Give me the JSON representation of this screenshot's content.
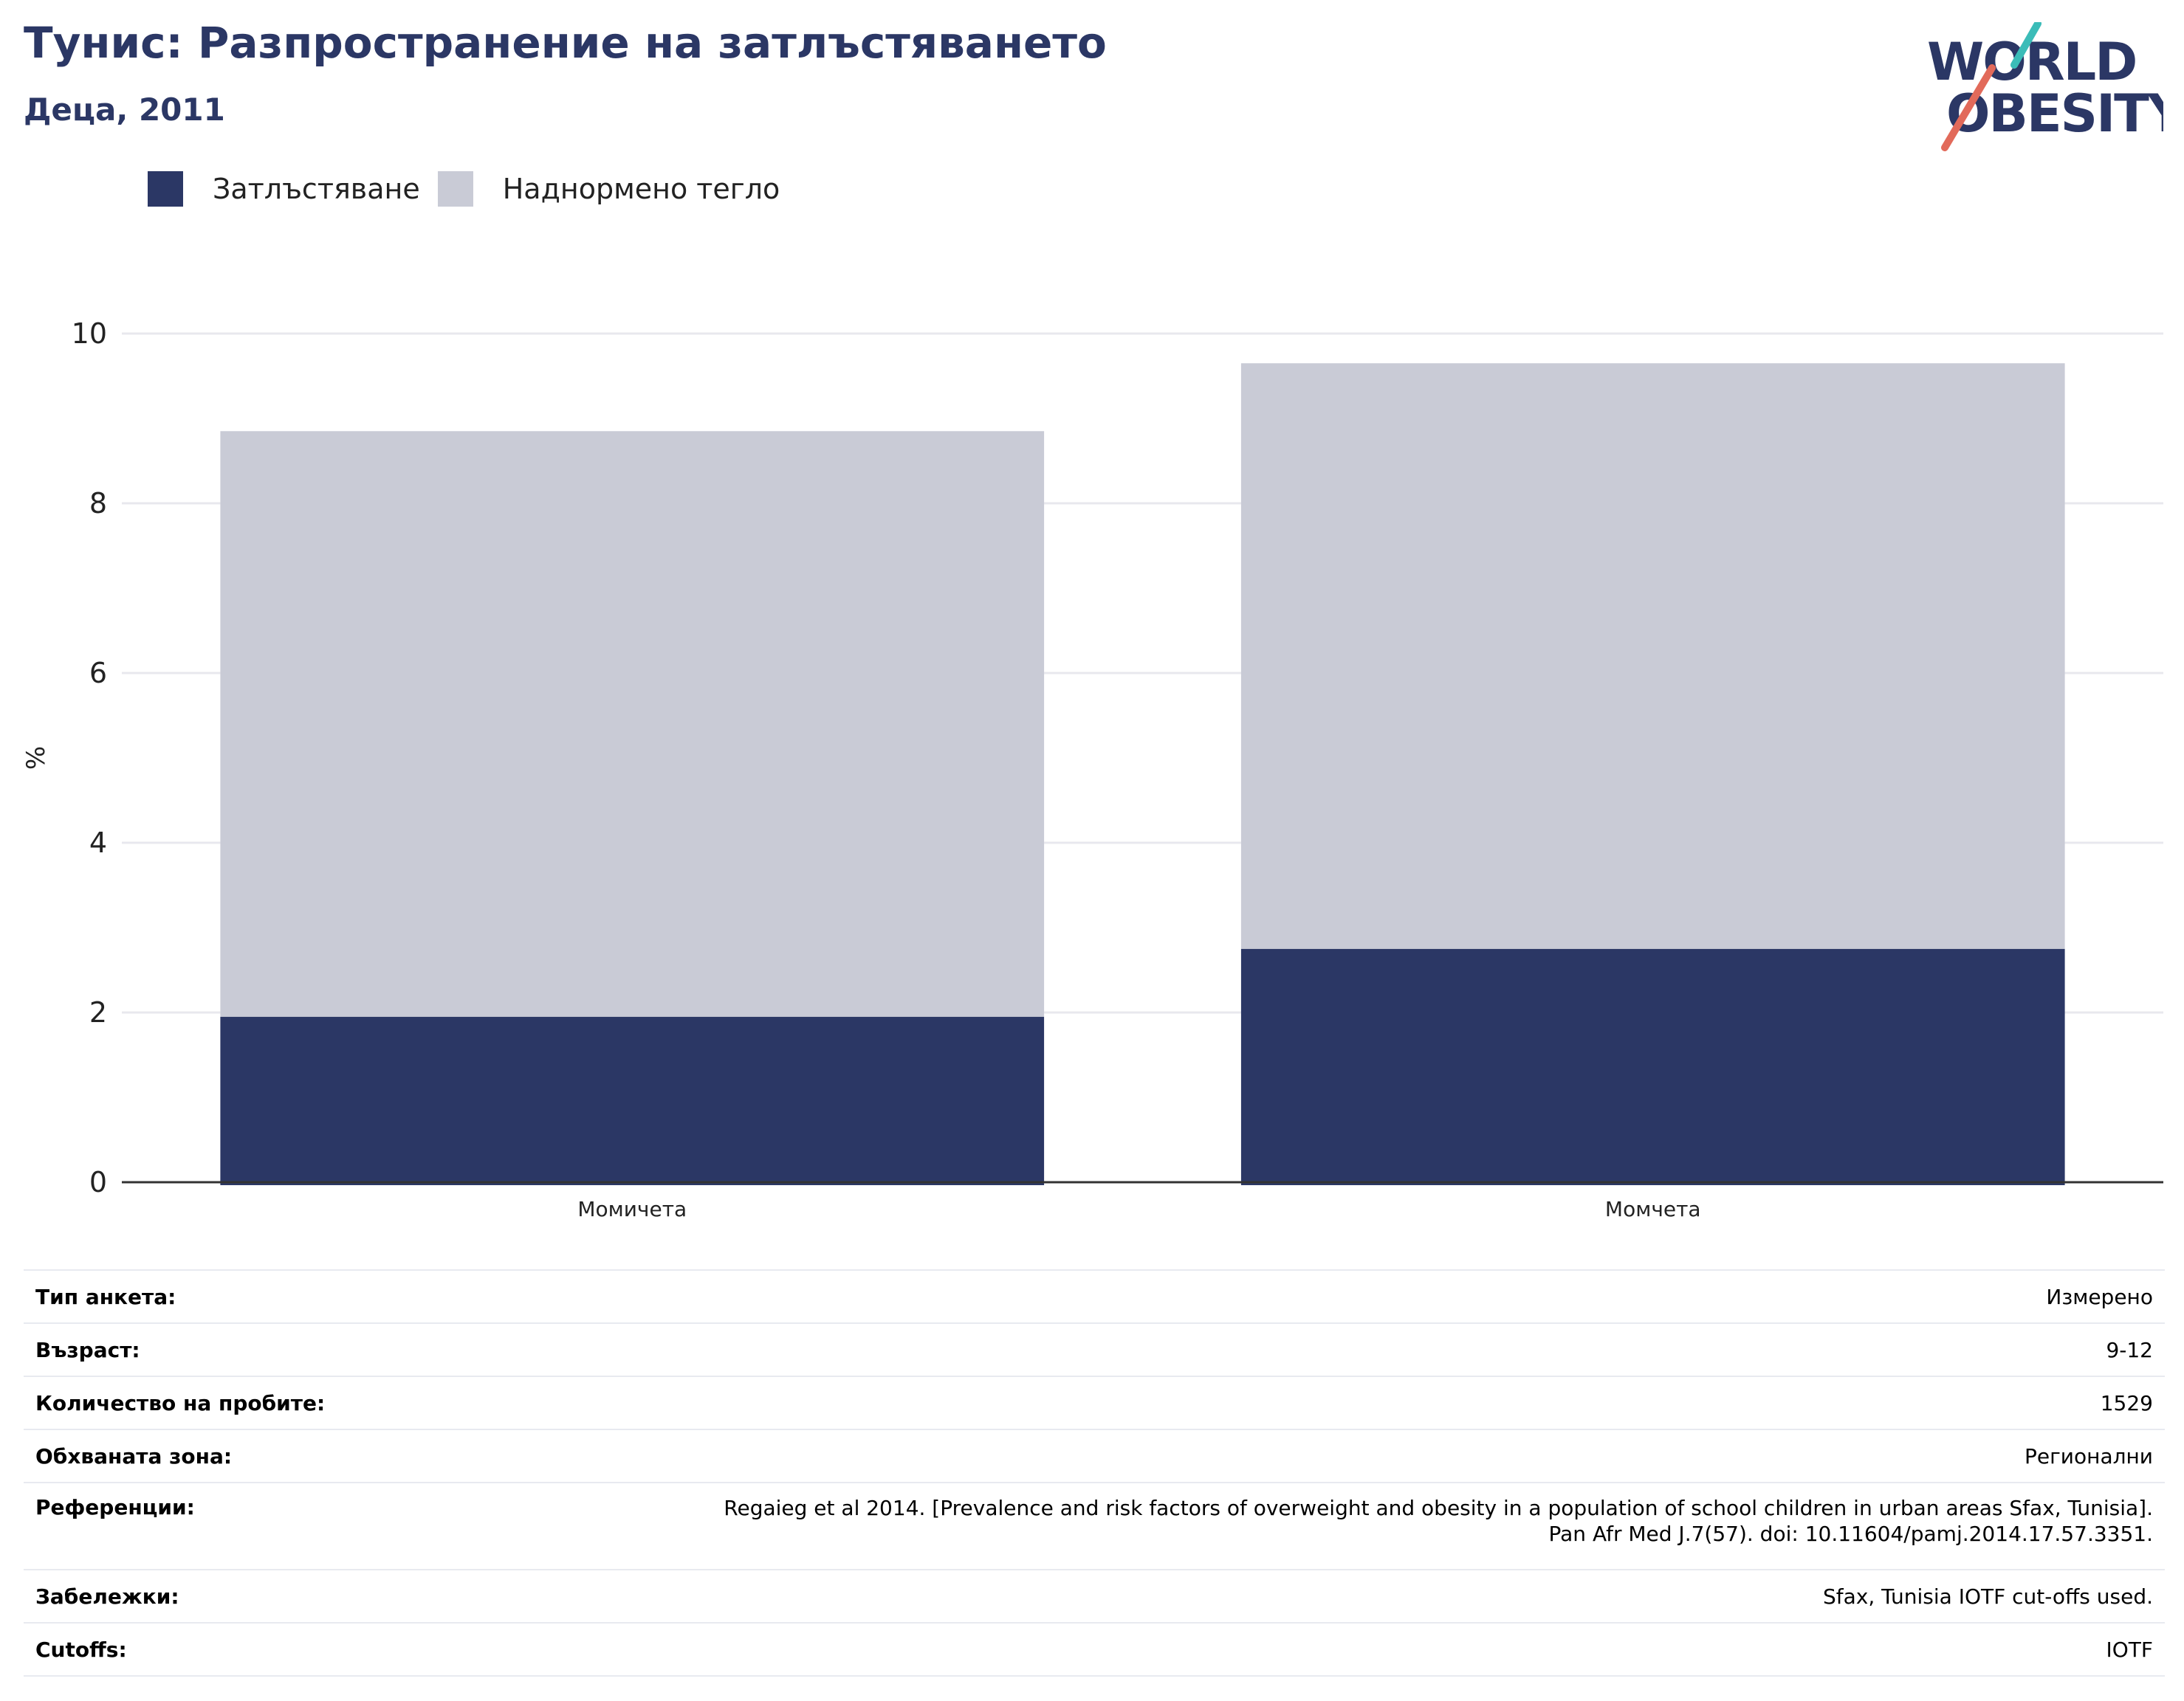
{
  "header": {
    "title": "Тунис: Разпространение на затлъстяването",
    "subtitle": "Деца, 2011"
  },
  "logo": {
    "line1": "WORLD",
    "line2": "OBESITY",
    "colors": {
      "text": "#2b3765",
      "teal": "#3bbcb8",
      "coral": "#e26a5a"
    }
  },
  "legend": {
    "items": [
      {
        "label": "Затлъстяване",
        "color": "#2b3765"
      },
      {
        "label": "Наднормено тегло",
        "color": "#c9cbd6"
      }
    ]
  },
  "chart_data": {
    "type": "bar",
    "stacked": true,
    "categories": [
      "Момичета",
      "Момчета"
    ],
    "series": [
      {
        "name": "Затлъстяване",
        "values": [
          1.95,
          2.75
        ],
        "color": "#2b3765"
      },
      {
        "name": "Наднормено тегло",
        "values": [
          6.9,
          6.9
        ],
        "color": "#c9cbd6"
      }
    ],
    "ylabel": "%",
    "ylim": [
      0,
      10
    ],
    "yticks": [
      0,
      2,
      4,
      6,
      8,
      10
    ],
    "grid": true,
    "legend_position": "top-left"
  },
  "info": {
    "rows": [
      {
        "key": "Тип анкета:",
        "value": "Измерено"
      },
      {
        "key": "Възраст:",
        "value": "9-12"
      },
      {
        "key": "Количество на пробите:",
        "value": "1529"
      },
      {
        "key": "Обхваната зона:",
        "value": "Регионални"
      },
      {
        "key": "Референции:",
        "value": "Regaieg et al 2014. [Prevalence and risk factors of overweight and obesity in a population of school children in urban areas Sfax, Tunisia].",
        "value2": "Pan Afr Med J.7(57). doi: 10.11604/pamj.2014.17.57.3351."
      },
      {
        "key": "Забележки:",
        "value": "Sfax, Tunisia IOTF cut-offs used."
      },
      {
        "key": "Cutoffs:",
        "value": "IOTF"
      }
    ]
  }
}
